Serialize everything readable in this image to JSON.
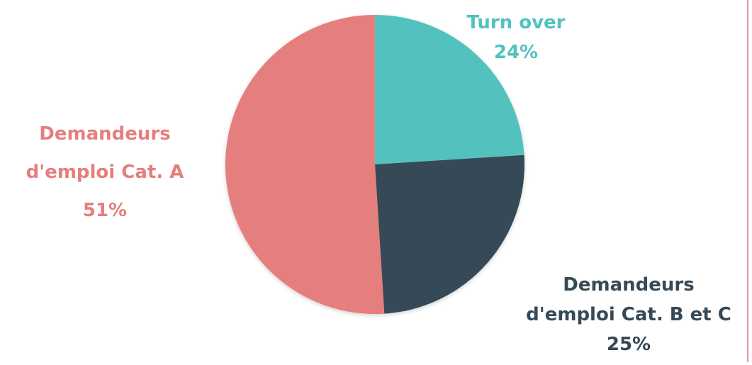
{
  "chart_data": {
    "type": "pie",
    "slices": [
      {
        "name": "Turn over",
        "label_lines": [
          "Turn over"
        ],
        "value": 24,
        "value_label": "24%",
        "color": "#52c2bf"
      },
      {
        "name": "Demandeurs d'emploi Cat. B et C",
        "label_lines": [
          "Demandeurs",
          "d'emploi Cat. B et C"
        ],
        "value": 25,
        "value_label": "25%",
        "color": "#364957"
      },
      {
        "name": "Demandeurs d'emploi Cat. A",
        "label_lines": [
          "Demandeurs",
          "d'emploi Cat. A"
        ],
        "value": 51,
        "value_label": "51%",
        "color": "#e57f7d"
      }
    ],
    "start_angle_deg": 0,
    "direction": "clockwise",
    "legend": "none"
  }
}
